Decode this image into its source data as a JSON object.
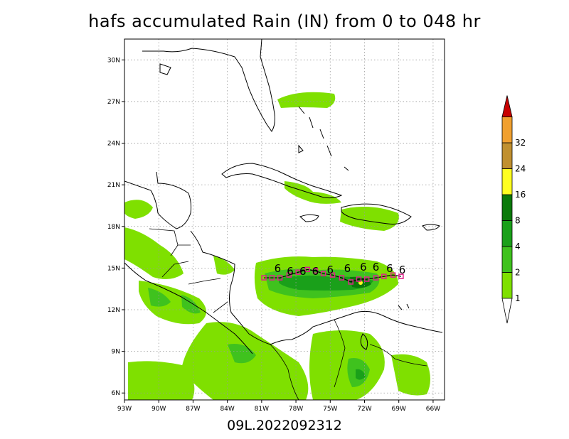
{
  "title": "hafs accumulated Rain (IN) from 0 to 048 hr",
  "footer": "09L.2022092312",
  "map": {
    "lon_range": [
      -93,
      -65
    ],
    "lat_range": [
      5.5,
      31.5
    ],
    "lon_ticks": [
      {
        "lon": -93,
        "label": "93W"
      },
      {
        "lon": -90,
        "label": "90W"
      },
      {
        "lon": -87,
        "label": "87W"
      },
      {
        "lon": -84,
        "label": "84W"
      },
      {
        "lon": -81,
        "label": "81W"
      },
      {
        "lon": -78,
        "label": "78W"
      },
      {
        "lon": -75,
        "label": "75W"
      },
      {
        "lon": -72,
        "label": "72W"
      },
      {
        "lon": -69,
        "label": "69W"
      },
      {
        "lon": -66,
        "label": "66W"
      }
    ],
    "lat_ticks": [
      {
        "lat": 6,
        "label": "6N"
      },
      {
        "lat": 9,
        "label": "9N"
      },
      {
        "lat": 12,
        "label": "12N"
      },
      {
        "lat": 15,
        "label": "15N"
      },
      {
        "lat": 18,
        "label": "18N"
      },
      {
        "lat": 21,
        "label": "21N"
      },
      {
        "lat": 24,
        "label": "24N"
      },
      {
        "lat": 27,
        "label": "27N"
      },
      {
        "lat": 30,
        "label": "30N"
      }
    ],
    "grid": "dotted"
  },
  "colorbar": {
    "levels": [
      {
        "label": "1",
        "color": "#7fe000"
      },
      {
        "label": "2",
        "color": "#3fc21e"
      },
      {
        "label": "4",
        "color": "#1aa01a"
      },
      {
        "label": "8",
        "color": "#0a7a0a"
      },
      {
        "label": "16",
        "color": "#ffff20"
      },
      {
        "label": "24",
        "color": "#c09030"
      },
      {
        "label": "32",
        "color": "#f0a030"
      }
    ],
    "top_color": "#c80000"
  },
  "track": {
    "symbol": "6",
    "storm_points": [
      {
        "lon": -68.7,
        "lat": 14.5
      },
      {
        "lon": -69.8,
        "lat": 14.6
      },
      {
        "lon": -71.0,
        "lat": 14.7
      },
      {
        "lon": -72.1,
        "lat": 14.7
      },
      {
        "lon": -73.5,
        "lat": 14.6
      },
      {
        "lon": -75.0,
        "lat": 14.5
      },
      {
        "lon": -76.3,
        "lat": 14.4
      },
      {
        "lon": -77.4,
        "lat": 14.4
      },
      {
        "lon": -78.5,
        "lat": 14.4
      },
      {
        "lon": -79.6,
        "lat": 14.6
      }
    ],
    "forecast_points": [
      {
        "lon": -68.8,
        "lat": 14.4
      },
      {
        "lon": -69.5,
        "lat": 14.5
      },
      {
        "lon": -70.3,
        "lat": 14.4
      },
      {
        "lon": -71.0,
        "lat": 14.3
      },
      {
        "lon": -71.8,
        "lat": 14.2
      },
      {
        "lon": -72.5,
        "lat": 14.2
      },
      {
        "lon": -73.2,
        "lat": 14.0
      },
      {
        "lon": -74.0,
        "lat": 14.3
      },
      {
        "lon": -74.8,
        "lat": 14.5
      },
      {
        "lon": -75.6,
        "lat": 14.6
      },
      {
        "lon": -76.3,
        "lat": 14.8
      },
      {
        "lon": -77.0,
        "lat": 14.9
      },
      {
        "lon": -77.8,
        "lat": 14.7
      },
      {
        "lon": -78.6,
        "lat": 14.5
      },
      {
        "lon": -79.4,
        "lat": 14.3
      },
      {
        "lon": -80.1,
        "lat": 14.3
      },
      {
        "lon": -80.8,
        "lat": 14.3
      }
    ],
    "symbol_color": "#000000",
    "forecast_color": "#e0208a"
  }
}
